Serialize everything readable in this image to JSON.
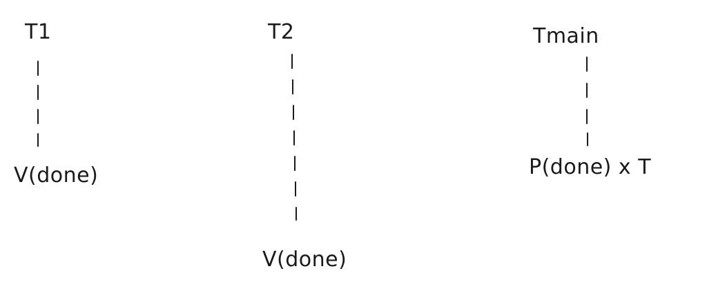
{
  "threads": [
    {
      "label": "T1",
      "event": "V(done)"
    },
    {
      "label": "T2",
      "event": "V(done)"
    },
    {
      "label": "Tmain",
      "event": "P(done) x T"
    }
  ]
}
